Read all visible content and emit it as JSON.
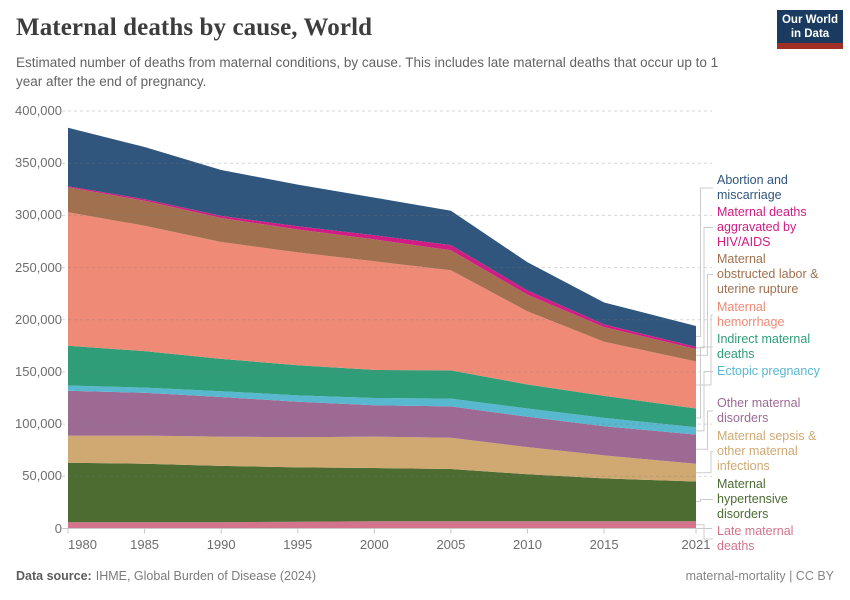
{
  "header": {
    "title": "Maternal deaths by cause, World",
    "subtitle": "Estimated number of deaths from maternal conditions, by cause. This includes late maternal deaths that occur up to 1 year after the end of pregnancy.",
    "logo": {
      "line1": "Our World",
      "line2": "in Data"
    }
  },
  "footer": {
    "source_label": "Data source:",
    "source_value": "IHME, Global Burden of Disease (2024)",
    "slug": "maternal-mortality",
    "separator": " | ",
    "license": "CC BY"
  },
  "colors": {
    "logo_navy": "#1a3a5f",
    "logo_red": "#a03026",
    "grid": "#dcdcdc",
    "axis_text": "#6d6d6d",
    "connector": "#cccccc"
  },
  "chart_data": {
    "type": "area",
    "stacked": true,
    "title": "Maternal deaths by cause, World",
    "ylabel": "",
    "xlabel": "",
    "ylim": [
      0,
      400000
    ],
    "grid": "dashed-horizontal",
    "legend_position": "right",
    "x": [
      1980,
      1985,
      1990,
      1995,
      2000,
      2005,
      2010,
      2015,
      2021
    ],
    "x_ticks": [
      1980,
      1985,
      1990,
      1995,
      2000,
      2005,
      2010,
      2015,
      2021
    ],
    "y_ticks": [
      0,
      50000,
      100000,
      150000,
      200000,
      250000,
      300000,
      350000,
      400000
    ],
    "series": [
      {
        "name": "Late maternal deaths",
        "color": "#d4748c",
        "values": [
          6000,
          6000,
          6000,
          6500,
          7000,
          7000,
          7000,
          7000,
          7000
        ]
      },
      {
        "name": "Maternal hypertensive disorders",
        "color": "#4c6c32",
        "values": [
          57000,
          56000,
          54000,
          52000,
          51000,
          50000,
          45000,
          41000,
          38000
        ]
      },
      {
        "name": "Maternal sepsis & other maternal infections",
        "color": "#d0a972",
        "values": [
          26000,
          27000,
          28000,
          29000,
          30000,
          30000,
          26000,
          22000,
          17000
        ]
      },
      {
        "name": "Other maternal disorders",
        "color": "#9d6a94",
        "values": [
          43000,
          41000,
          38000,
          34000,
          30000,
          30000,
          29000,
          28000,
          28000
        ]
      },
      {
        "name": "Ectopic pregnancy",
        "color": "#57b8d0",
        "values": [
          5000,
          5000,
          5500,
          6000,
          7000,
          7500,
          8000,
          8000,
          7000
        ]
      },
      {
        "name": "Indirect maternal deaths",
        "color": "#2f9e78",
        "values": [
          38000,
          35000,
          31000,
          29000,
          27000,
          27000,
          23000,
          21000,
          18000
        ]
      },
      {
        "name": "Maternal hemorrhage",
        "color": "#ee8a76",
        "values": [
          128000,
          120000,
          112000,
          108000,
          104000,
          96000,
          70000,
          52000,
          45000
        ]
      },
      {
        "name": "Maternal obstructed labor & uterine rupture",
        "color": "#a1714f",
        "values": [
          24000,
          24000,
          23000,
          22000,
          21000,
          19000,
          16000,
          14000,
          12000
        ]
      },
      {
        "name": "Maternal deaths aggravated by HIV/AIDS",
        "color": "#d01c84",
        "values": [
          1000,
          1500,
          2000,
          3000,
          4000,
          5000,
          4000,
          2500,
          2000
        ]
      },
      {
        "name": "Abortion and miscarriage",
        "color": "#30567d",
        "values": [
          56000,
          50000,
          44000,
          40000,
          36000,
          33000,
          27000,
          21000,
          20000
        ]
      }
    ]
  }
}
